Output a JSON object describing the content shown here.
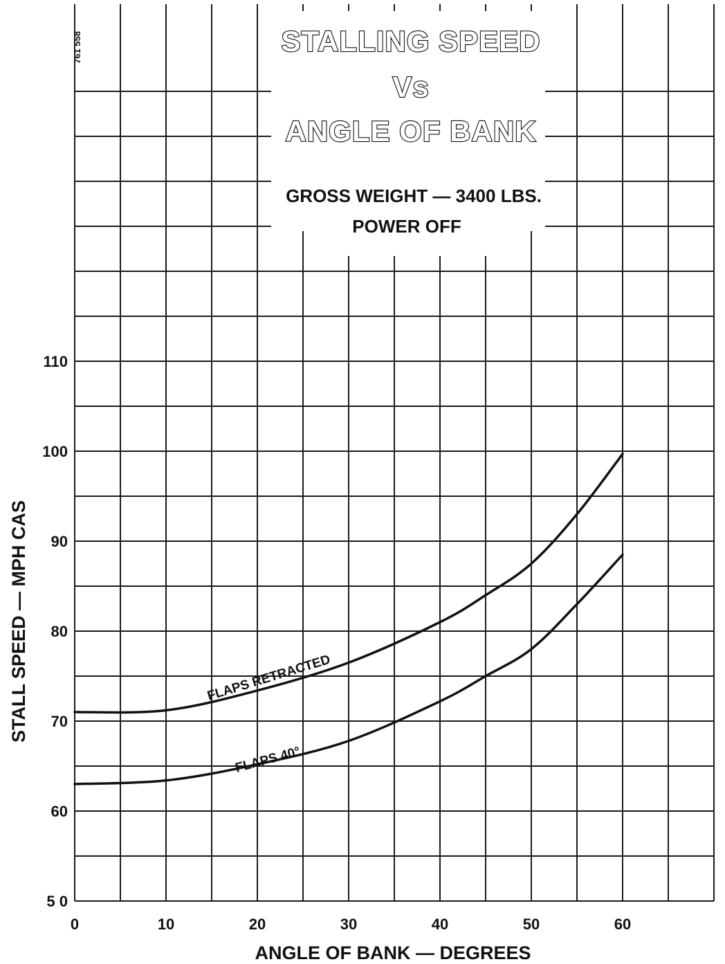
{
  "doc_code": "761 558",
  "chart_data": {
    "type": "line",
    "title_lines": [
      "STALLING SPEED",
      "Vs",
      "ANGLE OF BANK"
    ],
    "subtitle_lines": [
      "GROSS WEIGHT — 3400 LBS.",
      "POWER OFF"
    ],
    "xlabel": "ANGLE OF BANK — DEGREES",
    "ylabel": "STALL SPEED — MPH CAS",
    "xlim": [
      0,
      70
    ],
    "ylim": [
      50,
      110
    ],
    "x_ticks": [
      0,
      10,
      20,
      30,
      40,
      50,
      60
    ],
    "x_tick_labels": [
      "0",
      "10",
      "20",
      "30",
      "40",
      "50",
      "60"
    ],
    "y_ticks": [
      50,
      60,
      70,
      80,
      90,
      100,
      110
    ],
    "y_tick_labels": [
      "5 0",
      "60",
      "70",
      "80",
      "90",
      "100",
      "110"
    ],
    "grid": true,
    "series": [
      {
        "name": "FLAPS RETRACTED",
        "x": [
          0,
          10,
          20,
          30,
          40,
          45,
          50,
          55,
          60
        ],
        "y": [
          71,
          71.2,
          73.4,
          76.5,
          81,
          84,
          87.5,
          93,
          99.7
        ]
      },
      {
        "name": "FLAPS 40°",
        "x": [
          0,
          10,
          20,
          30,
          40,
          45,
          50,
          55,
          60
        ],
        "y": [
          63,
          63.4,
          65.2,
          67.8,
          72.2,
          75,
          78,
          83,
          88.5
        ]
      }
    ]
  }
}
